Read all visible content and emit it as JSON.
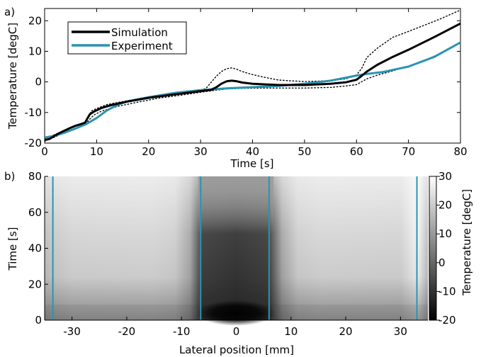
{
  "chart_data": [
    {
      "panel_label": "a)",
      "type": "line",
      "xlabel": "Time [s]",
      "ylabel": "Temperature [degC]",
      "xlim": [
        0,
        80
      ],
      "ylim": [
        -20,
        24
      ],
      "xticks": [
        0,
        10,
        20,
        30,
        40,
        50,
        60,
        70,
        80
      ],
      "yticks": [
        -20,
        -10,
        0,
        10,
        20
      ],
      "legend_position": "top-left",
      "series": [
        {
          "name": "Simulation",
          "color": "#000000",
          "style": "solid",
          "points": [
            [
              0,
              -19
            ],
            [
              1,
              -18.6
            ],
            [
              2,
              -17.5
            ],
            [
              3,
              -16.6
            ],
            [
              4,
              -15.8
            ],
            [
              5,
              -15
            ],
            [
              6,
              -14.3
            ],
            [
              7,
              -13.8
            ],
            [
              7.8,
              -13.3
            ],
            [
              8.2,
              -12
            ],
            [
              8.7,
              -10.6
            ],
            [
              9.5,
              -9.7
            ],
            [
              11,
              -8.5
            ],
            [
              13,
              -7.5
            ],
            [
              16,
              -6.4
            ],
            [
              20,
              -5.2
            ],
            [
              25,
              -4.1
            ],
            [
              30,
              -3
            ],
            [
              32,
              -2.6
            ],
            [
              33,
              -1.8
            ],
            [
              34,
              -0.6
            ],
            [
              35,
              0.2
            ],
            [
              36,
              0.4
            ],
            [
              37,
              0.2
            ],
            [
              38,
              -0.2
            ],
            [
              40,
              -0.6
            ],
            [
              45,
              -1
            ],
            [
              50,
              -1
            ],
            [
              55,
              -0.6
            ],
            [
              58,
              -0.1
            ],
            [
              60,
              0.7
            ],
            [
              61,
              2
            ],
            [
              62,
              3.4
            ],
            [
              64,
              5.6
            ],
            [
              67,
              8.2
            ],
            [
              70,
              10.5
            ],
            [
              75,
              14.7
            ],
            [
              80,
              19.1
            ]
          ]
        },
        {
          "name": "Experiment",
          "color": "#2a94b0",
          "style": "solid",
          "points": [
            [
              0,
              -18.2
            ],
            [
              2,
              -17.6
            ],
            [
              4,
              -16.5
            ],
            [
              6,
              -15.2
            ],
            [
              8,
              -13.8
            ],
            [
              10,
              -11.8
            ],
            [
              12,
              -9.3
            ],
            [
              14,
              -7.5
            ],
            [
              16,
              -6.3
            ],
            [
              20,
              -5
            ],
            [
              25,
              -3.6
            ],
            [
              30,
              -2.7
            ],
            [
              35,
              -2.1
            ],
            [
              40,
              -1.7
            ],
            [
              45,
              -1.3
            ],
            [
              50,
              -0.6
            ],
            [
              55,
              0.4
            ],
            [
              58,
              1.4
            ],
            [
              60,
              2.1
            ],
            [
              62,
              2.6
            ],
            [
              65,
              3.2
            ],
            [
              70,
              5
            ],
            [
              75,
              8.2
            ],
            [
              80,
              12.9
            ]
          ]
        },
        {
          "name": "",
          "color": "#000000",
          "style": "dotted",
          "points": [
            [
              0,
              -18.6
            ],
            [
              2,
              -17.2
            ],
            [
              4,
              -15.6
            ],
            [
              6,
              -14.3
            ],
            [
              7.8,
              -13.4
            ],
            [
              8.3,
              -11.6
            ],
            [
              9,
              -9.5
            ],
            [
              10,
              -8.7
            ],
            [
              12,
              -7.4
            ],
            [
              16,
              -6.1
            ],
            [
              20,
              -5
            ],
            [
              25,
              -3.9
            ],
            [
              30,
              -2.6
            ],
            [
              31,
              -2.2
            ],
            [
              32,
              -0.2
            ],
            [
              33,
              1.8
            ],
            [
              34,
              3.4
            ],
            [
              35,
              4.3
            ],
            [
              36,
              4.6
            ],
            [
              37,
              4.1
            ],
            [
              38,
              3.4
            ],
            [
              40,
              2.4
            ],
            [
              42,
              1.6
            ],
            [
              45,
              0.6
            ],
            [
              50,
              0.1
            ],
            [
              55,
              0.4
            ],
            [
              58,
              1
            ],
            [
              60,
              2.3
            ],
            [
              61,
              4.4
            ],
            [
              62,
              8
            ],
            [
              64,
              11
            ],
            [
              67,
              14.6
            ],
            [
              70,
              16.5
            ],
            [
              73,
              18.5
            ],
            [
              76,
              20.5
            ],
            [
              80,
              23.5
            ]
          ]
        },
        {
          "name": "",
          "color": "#000000",
          "style": "dotted",
          "points": [
            [
              0,
              -19.4
            ],
            [
              2,
              -18
            ],
            [
              4,
              -16.3
            ],
            [
              6,
              -15
            ],
            [
              7.8,
              -14
            ],
            [
              8.5,
              -12.5
            ],
            [
              9.5,
              -10.8
            ],
            [
              11,
              -9.5
            ],
            [
              14,
              -8
            ],
            [
              18,
              -6.6
            ],
            [
              22,
              -5.3
            ],
            [
              26,
              -4.4
            ],
            [
              30,
              -3.4
            ],
            [
              33,
              -2.7
            ],
            [
              35,
              -2.3
            ],
            [
              38,
              -2.1
            ],
            [
              42,
              -2
            ],
            [
              46,
              -2
            ],
            [
              50,
              -2
            ],
            [
              55,
              -1.8
            ],
            [
              58,
              -1.3
            ],
            [
              60,
              -0.9
            ],
            [
              62,
              1
            ],
            [
              64,
              2.2
            ],
            [
              67,
              3.6
            ],
            [
              70,
              5.2
            ],
            [
              73,
              7
            ],
            [
              76,
              9.2
            ],
            [
              80,
              12.9
            ]
          ]
        }
      ]
    },
    {
      "panel_label": "b)",
      "type": "heatmap",
      "xlabel": "Lateral position [mm]",
      "ylabel": "Time [s]",
      "xlim": [
        -35,
        35
      ],
      "ylim": [
        0,
        80
      ],
      "xticks": [
        -30,
        -20,
        -10,
        0,
        10,
        20,
        30
      ],
      "yticks": [
        0,
        20,
        40,
        60,
        80
      ],
      "colorbar": {
        "label": "Temperature [degC]",
        "range": [
          -20,
          30
        ],
        "ticks": [
          30,
          20,
          10,
          0,
          -10,
          -20
        ],
        "colormap": "gray"
      },
      "boundary_lines": {
        "color": "#2a94b0",
        "x": [
          -33.5,
          -6.5,
          6,
          33
        ]
      },
      "description_values": {
        "outer_regions_temperature_approx": 15,
        "central_region_temperature_range": [
          -20,
          0
        ]
      }
    }
  ]
}
